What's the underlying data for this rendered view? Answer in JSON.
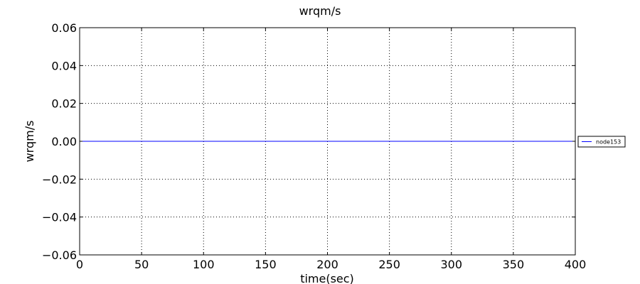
{
  "chart_data": {
    "type": "line",
    "title": "wrqm/s",
    "xlabel": "time(sec)",
    "ylabel": "wrqm/s",
    "xlim": [
      0,
      400
    ],
    "ylim": [
      -0.06,
      0.06
    ],
    "x_ticks": [
      0,
      50,
      100,
      150,
      200,
      250,
      300,
      350,
      400
    ],
    "y_ticks": [
      0.06,
      0.04,
      0.02,
      0.0,
      -0.02,
      -0.04,
      -0.06
    ],
    "x_tick_labels": [
      "0",
      "50",
      "100",
      "150",
      "200",
      "250",
      "300",
      "350",
      "400"
    ],
    "y_tick_labels": [
      "0.06",
      "0.04",
      "0.02",
      "0.00",
      "−0.02",
      "−0.04",
      "−0.06"
    ],
    "grid": true,
    "legend_position": "right",
    "series": [
      {
        "name": "node153",
        "color": "#0000ff",
        "x": [
          0,
          400
        ],
        "y": [
          0,
          0
        ]
      }
    ]
  }
}
